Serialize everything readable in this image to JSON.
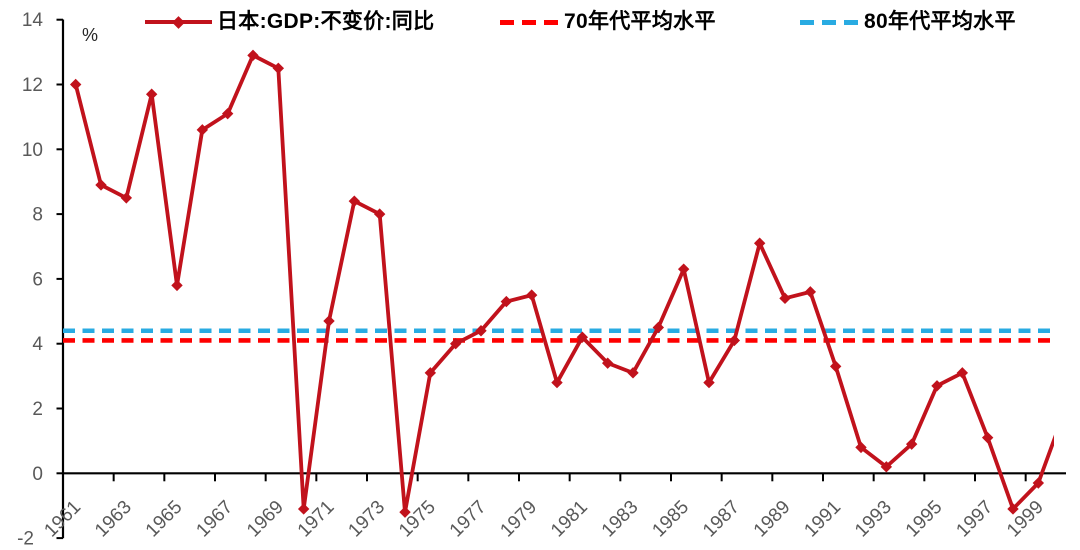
{
  "unit_label": "%",
  "colors": {
    "series": "#c1121c",
    "ref70": "#fe0000",
    "ref80": "#29abe2",
    "axis": "#000000",
    "tick_label": "#595959",
    "unit_label": "#262626",
    "legend_text": "#000000"
  },
  "legend": {
    "items": [
      {
        "id": "gdp",
        "label": "日本:GDP:不变价:同比",
        "marker": "solid-line-with-diamond"
      },
      {
        "id": "avg70s",
        "label": "70年代平均水平",
        "marker": "red-dashed-line"
      },
      {
        "id": "avg80s",
        "label": "80年代平均水平",
        "marker": "blue-dashed-line"
      }
    ]
  },
  "chart_data": {
    "type": "line",
    "title": "",
    "xlabel": "",
    "ylabel": "%",
    "grid": false,
    "legend_position": "top",
    "ylim": [
      -2,
      14
    ],
    "y_ticks": [
      14,
      12,
      10,
      8,
      6,
      4,
      2,
      0,
      -2
    ],
    "x_tick_labels": [
      "1961",
      "1963",
      "1965",
      "1967",
      "1969",
      "1971",
      "1973",
      "1975",
      "1977",
      "1979",
      "1981",
      "1983",
      "1985",
      "1987",
      "1989",
      "1991",
      "1993",
      "1995",
      "1997",
      "1999"
    ],
    "years": [
      1961,
      1962,
      1963,
      1964,
      1965,
      1966,
      1967,
      1968,
      1969,
      1970,
      1971,
      1972,
      1973,
      1974,
      1975,
      1976,
      1977,
      1978,
      1979,
      1980,
      1981,
      1982,
      1983,
      1984,
      1985,
      1986,
      1987,
      1988,
      1989,
      1990,
      1991,
      1992,
      1993,
      1994,
      1995,
      1996,
      1997,
      1998,
      1999
    ],
    "series": [
      {
        "name": "日本:GDP:不变价:同比",
        "marker": "diamond",
        "values": [
          12.0,
          8.9,
          8.5,
          11.7,
          5.8,
          10.6,
          11.1,
          12.9,
          12.5,
          -1.1,
          4.7,
          8.4,
          8.0,
          -1.2,
          3.1,
          4.0,
          4.4,
          5.3,
          5.5,
          2.8,
          4.2,
          3.4,
          3.1,
          4.5,
          6.3,
          2.8,
          4.1,
          7.1,
          5.4,
          5.6,
          3.3,
          0.8,
          0.2,
          0.9,
          2.7,
          3.1,
          1.1,
          -1.1,
          -0.3
        ],
        "partial_next_point": {
          "year": 2000,
          "value": 2.9,
          "note": "line segment clipped at right plot edge"
        }
      }
    ],
    "ref_lines": [
      {
        "name": "70年代平均水平",
        "value": 4.1,
        "style": "dashed"
      },
      {
        "name": "80年代平均水平",
        "value": 4.4,
        "style": "dashed"
      }
    ]
  }
}
